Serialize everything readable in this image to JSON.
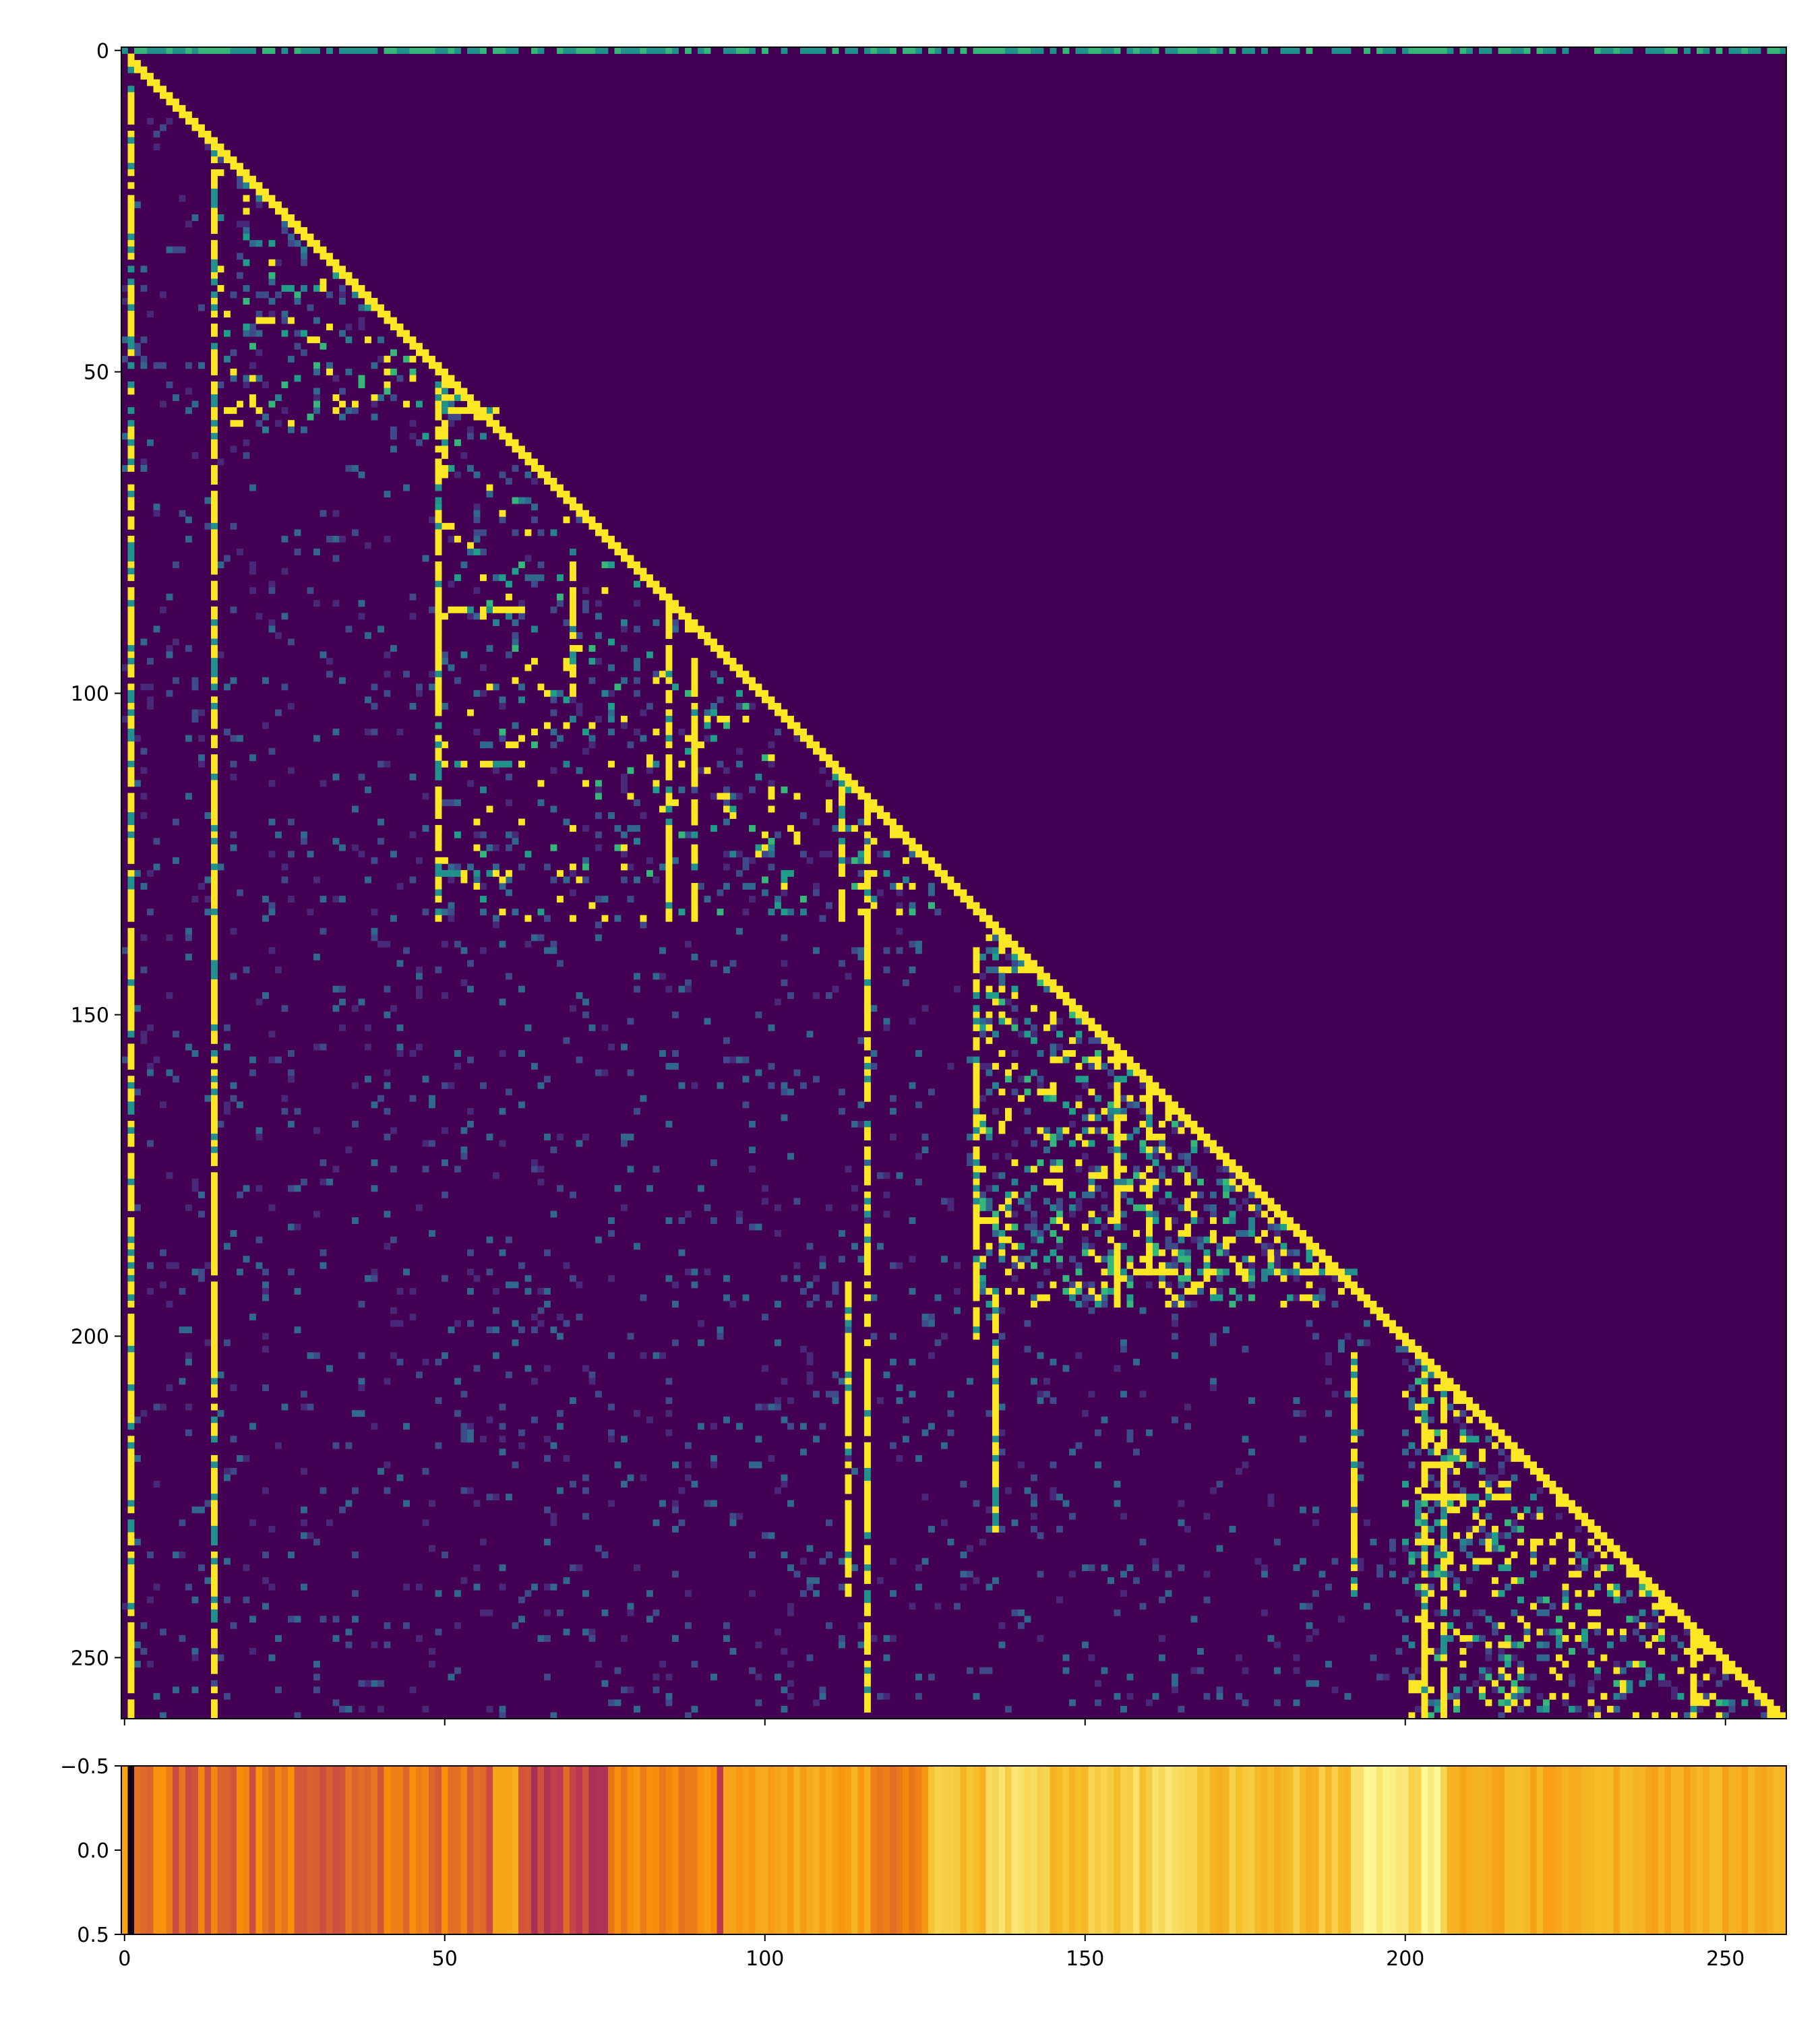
{
  "chart_data": [
    {
      "type": "heatmap",
      "title": "",
      "xlabel": "",
      "ylabel": "",
      "xlim": [
        -0.5,
        259.5
      ],
      "ylim": [
        259.5,
        -0.5
      ],
      "xticks": [
        0,
        50,
        100,
        150,
        200,
        250
      ],
      "yticks": [
        0,
        50,
        100,
        150,
        200,
        250
      ],
      "xtick_labels": [
        "0",
        "50",
        "100",
        "150",
        "200",
        "250"
      ],
      "ytick_labels": [
        "0",
        "50",
        "100",
        "150",
        "200",
        "250"
      ],
      "colormap": "viridis",
      "background_color": "#440154",
      "high_color": "#fde725",
      "mid_color": "#21918c",
      "structure": "lower-triangular attention matrix, 260x260; strong diagonal; bright columns near 1, 14, 50, 70, 85, 113, 116, 133, 155, 192, 203, 206; dense block around rows 135-195 cols 135-190 and rows 200-260 cols 200-260",
      "size": 260,
      "bright_columns": [
        {
          "col": 1,
          "rows": [
            1,
            259
          ]
        },
        {
          "col": 14,
          "rows": [
            14,
            259
          ]
        },
        {
          "col": 49,
          "rows": [
            50,
            135
          ]
        },
        {
          "col": 50,
          "rows": [
            52,
            66
          ]
        },
        {
          "col": 70,
          "rows": [
            80,
            100
          ]
        },
        {
          "col": 85,
          "rows": [
            85,
            135
          ]
        },
        {
          "col": 89,
          "rows": [
            95,
            135
          ]
        },
        {
          "col": 112,
          "rows": [
            113,
            135
          ]
        },
        {
          "col": 113,
          "rows": [
            192,
            240
          ]
        },
        {
          "col": 116,
          "rows": [
            116,
            259
          ]
        },
        {
          "col": 133,
          "rows": [
            140,
            200
          ]
        },
        {
          "col": 136,
          "rows": [
            192,
            230
          ]
        },
        {
          "col": 155,
          "rows": [
            155,
            195
          ]
        },
        {
          "col": 160,
          "rows": [
            160,
            190
          ]
        },
        {
          "col": 192,
          "rows": [
            200,
            240
          ]
        },
        {
          "col": 203,
          "rows": [
            205,
            259
          ]
        },
        {
          "col": 206,
          "rows": [
            206,
            259
          ]
        },
        {
          "col": 245,
          "rows": [
            245,
            259
          ]
        }
      ],
      "bright_rows": [
        {
          "row": 0,
          "cols": [
            0,
            259
          ],
          "color": "mid"
        },
        {
          "row": 56,
          "cols": [
            49,
            58
          ]
        },
        {
          "row": 87,
          "cols": [
            49,
            62
          ]
        },
        {
          "row": 111,
          "cols": [
            49,
            62
          ]
        },
        {
          "row": 128,
          "cols": [
            49,
            62
          ]
        },
        {
          "row": 190,
          "cols": [
            155,
            192
          ]
        },
        {
          "row": 225,
          "cols": [
            203,
            215
          ]
        }
      ],
      "dense_blocks": [
        {
          "rows": [
            135,
            195
          ],
          "cols": [
            133,
            192
          ],
          "density": 0.35
        },
        {
          "rows": [
            200,
            259
          ],
          "cols": [
            200,
            259
          ],
          "density": 0.3
        },
        {
          "rows": [
            10,
            60
          ],
          "cols": [
            14,
            60
          ],
          "density": 0.15
        },
        {
          "rows": [
            60,
            135
          ],
          "cols": [
            49,
            135
          ],
          "density": 0.1
        }
      ]
    },
    {
      "type": "heatmap",
      "title": "",
      "xlabel": "",
      "ylabel": "",
      "xlim": [
        -0.5,
        259.5
      ],
      "ylim": [
        0.5,
        -0.5
      ],
      "xticks": [
        0,
        50,
        100,
        150,
        200,
        250
      ],
      "yticks": [
        -0.5,
        0.0,
        0.5
      ],
      "xtick_labels": [
        "0",
        "50",
        "100",
        "150",
        "200",
        "250"
      ],
      "ytick_labels": [
        "−0.5",
        "0.0",
        "0.5"
      ],
      "colormap": "inferno",
      "segments": [
        {
          "from": 0,
          "to": 1,
          "value": 0.68
        },
        {
          "from": 1,
          "to": 2,
          "value": 0.05
        },
        {
          "from": 2,
          "to": 58,
          "value": 0.55
        },
        {
          "from": 58,
          "to": 62,
          "value": 0.72
        },
        {
          "from": 62,
          "to": 76,
          "value": 0.48
        },
        {
          "from": 76,
          "to": 93,
          "value": 0.62
        },
        {
          "from": 93,
          "to": 94,
          "value": 0.45
        },
        {
          "from": 94,
          "to": 117,
          "value": 0.7
        },
        {
          "from": 117,
          "to": 126,
          "value": 0.6
        },
        {
          "from": 126,
          "to": 135,
          "value": 0.8
        },
        {
          "from": 135,
          "to": 145,
          "value": 0.9
        },
        {
          "from": 145,
          "to": 155,
          "value": 0.82
        },
        {
          "from": 155,
          "to": 170,
          "value": 0.86
        },
        {
          "from": 170,
          "to": 192,
          "value": 0.8
        },
        {
          "from": 192,
          "to": 207,
          "value": 0.92
        },
        {
          "from": 207,
          "to": 260,
          "value": 0.74
        }
      ]
    }
  ]
}
